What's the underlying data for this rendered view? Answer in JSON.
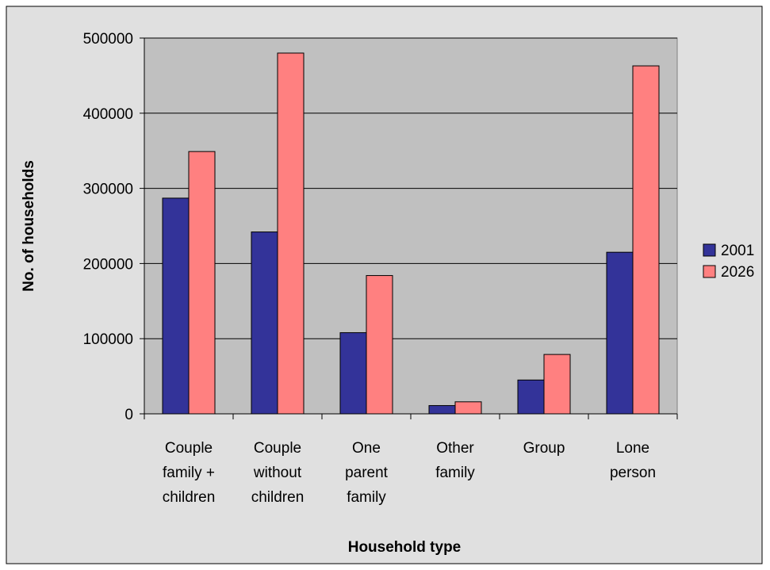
{
  "chart_data": {
    "type": "bar",
    "title": "",
    "xlabel": "Household type",
    "ylabel": "No. of households",
    "categories": [
      [
        "Couple",
        "family +",
        "children"
      ],
      [
        "Couple",
        "without",
        "children"
      ],
      [
        "One",
        "parent",
        "family"
      ],
      [
        "Other",
        "family"
      ],
      [
        "Group"
      ],
      [
        "Lone",
        "person"
      ]
    ],
    "series": [
      {
        "name": "2001",
        "color": "#333399",
        "values": [
          287000,
          242000,
          108000,
          11000,
          45000,
          215000
        ]
      },
      {
        "name": "2026",
        "color": "#ff8080",
        "values": [
          349000,
          480000,
          184000,
          16000,
          79000,
          463000
        ]
      }
    ],
    "ylim": [
      0,
      500000
    ],
    "yticks": [
      "0",
      "100000",
      "200000",
      "300000",
      "400000",
      "500000"
    ],
    "grid": true,
    "legend_position": "right",
    "plot_background": "#c0c0c0",
    "chart_background": "#e0e0e0"
  }
}
